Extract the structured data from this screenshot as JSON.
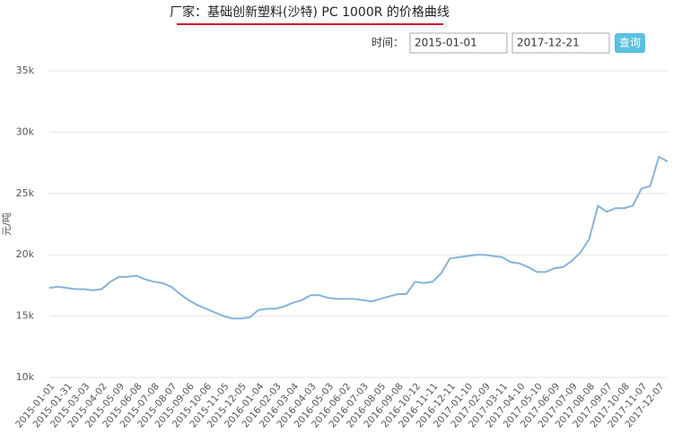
{
  "controls": {
    "time_label": "时间：",
    "start_date": "2015-01-01",
    "end_date": "2017-12-21",
    "query_button": "查询"
  },
  "chart_data": {
    "type": "line",
    "title": "厂家：基础创新塑料(沙特) PC 1000R 的价格曲线",
    "ylabel": "元/吨",
    "categories": [
      "2015-01-01",
      null,
      "2015-01-31",
      null,
      "2015-03-03",
      null,
      "2015-04-02",
      null,
      "2015-05-09",
      null,
      "2015-06-08",
      null,
      "2015-07-08",
      null,
      "2015-08-07",
      null,
      "2015-09-06",
      null,
      "2015-10-06",
      null,
      "2015-11-05",
      null,
      "2015-12-05",
      null,
      "2016-01-04",
      null,
      "2016-02-03",
      null,
      "2016-03-04",
      null,
      "2016-04-03",
      null,
      "2016-05-03",
      null,
      "2016-06-02",
      null,
      "2016-07-03",
      null,
      "2016-08-05",
      null,
      "2016-09-08",
      null,
      "2016-10-12",
      null,
      "2016-11-11",
      null,
      "2016-12-11",
      null,
      "2017-01-10",
      null,
      "2017-02-09",
      null,
      "2017-03-11",
      null,
      "2017-04-10",
      null,
      "2017-05-10",
      null,
      "2017-06-09",
      null,
      "2017-07-09",
      null,
      "2017-08-08",
      null,
      "2017-09-07",
      null,
      "2017-10-08",
      null,
      "2017-11-07",
      null,
      "2017-12-07",
      null
    ],
    "values": [
      17300,
      17400,
      17300,
      17200,
      17200,
      17100,
      17200,
      17800,
      18200,
      18200,
      18300,
      18000,
      17800,
      17700,
      17400,
      16800,
      16300,
      15900,
      15600,
      15300,
      15000,
      14800,
      14800,
      14900,
      15500,
      15600,
      15600,
      15800,
      16100,
      16300,
      16700,
      16700,
      16500,
      16400,
      16400,
      16400,
      16300,
      16200,
      16400,
      16600,
      16800,
      16800,
      17800,
      17700,
      17800,
      18500,
      19700,
      19800,
      19900,
      20000,
      20000,
      19900,
      19800,
      19400,
      19300,
      19000,
      18600,
      18600,
      18900,
      19000,
      19500,
      20200,
      21300,
      24000,
      23500,
      23800,
      23800,
      24000,
      25400,
      25600,
      28000,
      27600
    ],
    "color": "#86b3d9",
    "ylim": [
      10000,
      35000
    ],
    "yticks": [
      {
        "value": 10000,
        "label": "10k"
      },
      {
        "value": 15000,
        "label": "15k"
      },
      {
        "value": 20000,
        "label": "20k"
      },
      {
        "value": 25000,
        "label": "25k"
      },
      {
        "value": 30000,
        "label": "30k"
      },
      {
        "value": 35000,
        "label": "35k"
      }
    ],
    "grid": true
  }
}
